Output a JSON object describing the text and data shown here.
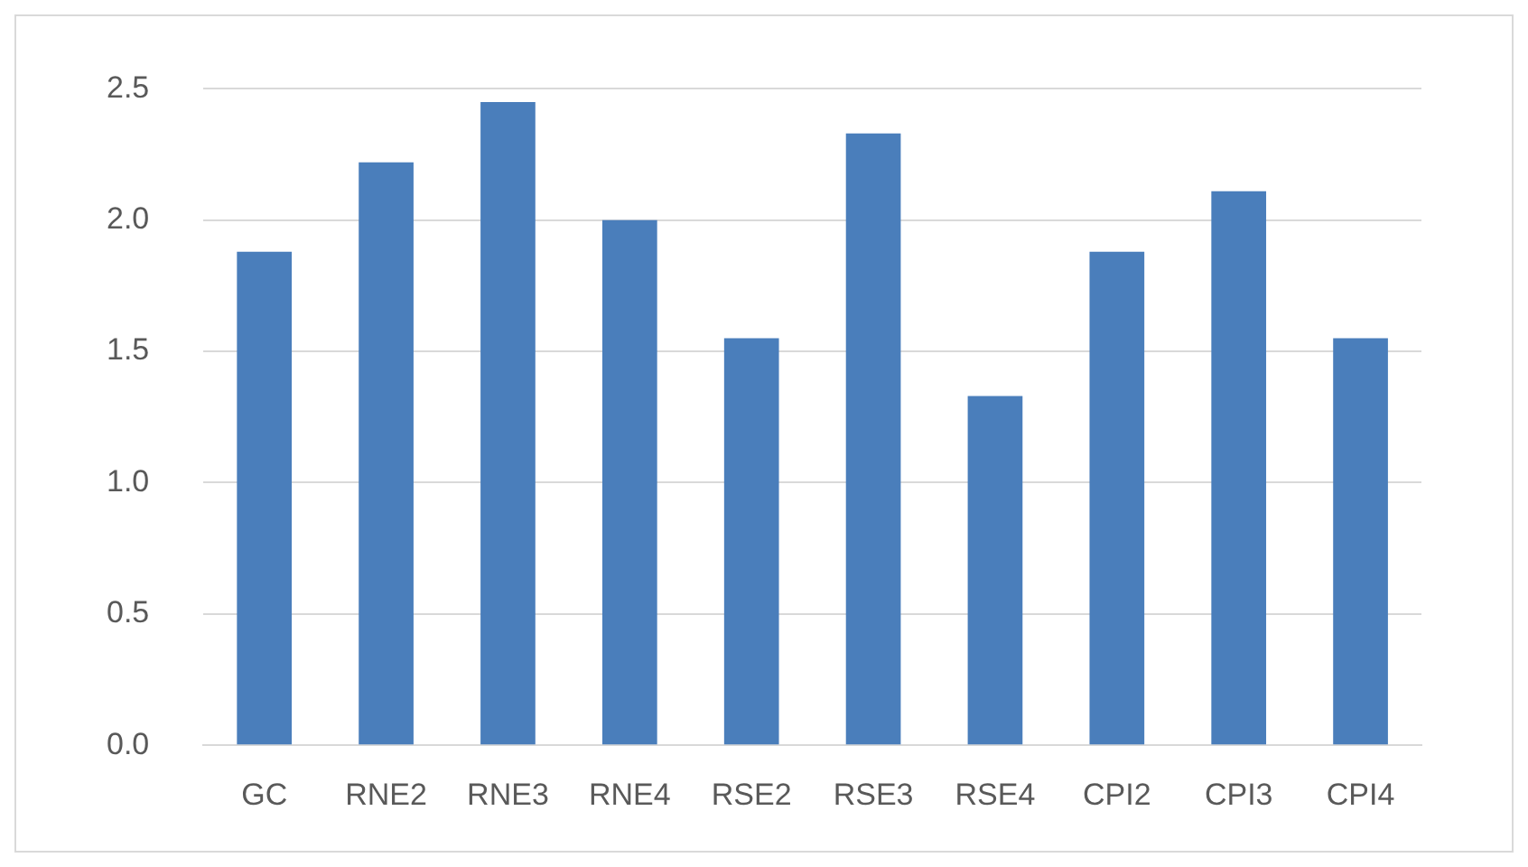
{
  "chart_data": {
    "type": "bar",
    "categories": [
      "GC",
      "RNE2",
      "RNE3",
      "RNE4",
      "RSE2",
      "RSE3",
      "RSE4",
      "CPI2",
      "CPI3",
      "CPI4"
    ],
    "values": [
      1.88,
      2.22,
      2.45,
      2.0,
      1.55,
      2.33,
      1.33,
      1.88,
      2.11,
      1.55
    ],
    "color": "#4a7ebb",
    "ylim": [
      0,
      2.5
    ],
    "yticks": [
      {
        "value": 0,
        "label": "0.0"
      },
      {
        "value": 0.5,
        "label": "0.5"
      },
      {
        "value": 1,
        "label": "1.0"
      },
      {
        "value": 1.5,
        "label": "1.5"
      },
      {
        "value": 2,
        "label": "2.0"
      },
      {
        "value": 2.5,
        "label": "2.5"
      }
    ],
    "grid": "y",
    "legend": false
  }
}
